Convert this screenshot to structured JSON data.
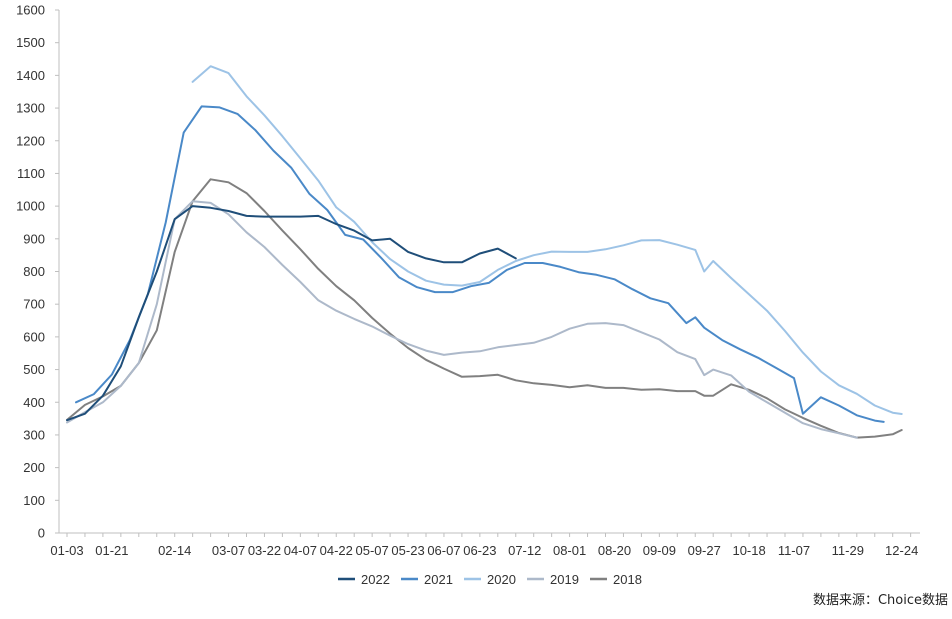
{
  "chart_data": {
    "type": "line",
    "title": "",
    "xlabel": "",
    "ylabel": "",
    "ylim": [
      0,
      1600
    ],
    "yticks": [
      0,
      100,
      200,
      300,
      400,
      500,
      600,
      700,
      800,
      900,
      1000,
      1100,
      1200,
      1300,
      1400,
      1500,
      1600
    ],
    "grid": false,
    "legend": "bottom-center",
    "x_tick_labels": [
      "01-03",
      "01-21",
      "02-14",
      "03-07",
      "03-22",
      "04-07",
      "04-22",
      "05-07",
      "05-23",
      "06-07",
      "06-23",
      "07-12",
      "08-01",
      "08-20",
      "09-09",
      "09-27",
      "10-18",
      "11-07",
      "11-29",
      "12-24"
    ],
    "x_tick_weeks": [
      0,
      2.5,
      6,
      9,
      11,
      13,
      15,
      17,
      19,
      21,
      23,
      25.5,
      28,
      30.5,
      33,
      35.5,
      38,
      40.5,
      43.5,
      46.5
    ],
    "series": [
      {
        "name": "2022",
        "color": "#1f4e79",
        "points": [
          [
            0,
            345
          ],
          [
            1,
            365
          ],
          [
            2,
            420
          ],
          [
            3,
            510
          ],
          [
            4,
            660
          ],
          [
            5,
            800
          ],
          [
            6,
            960
          ],
          [
            7,
            1000
          ],
          [
            8,
            995
          ],
          [
            9,
            985
          ],
          [
            10,
            970
          ],
          [
            11,
            968
          ],
          [
            12,
            968
          ],
          [
            13,
            968
          ],
          [
            14,
            970
          ],
          [
            15,
            945
          ],
          [
            16,
            925
          ],
          [
            17,
            895
          ],
          [
            18,
            900
          ],
          [
            19,
            860
          ],
          [
            20,
            840
          ],
          [
            21,
            828
          ],
          [
            22,
            828
          ],
          [
            23,
            855
          ],
          [
            24,
            870
          ],
          [
            25,
            840
          ]
        ]
      },
      {
        "name": "2021",
        "color": "#4a89c8",
        "points": [
          [
            0.5,
            400
          ],
          [
            1.5,
            425
          ],
          [
            2.5,
            485
          ],
          [
            3.5,
            590
          ],
          [
            4.5,
            730
          ],
          [
            5.5,
            950
          ],
          [
            6.5,
            1225
          ],
          [
            7.5,
            1305
          ],
          [
            8.5,
            1302
          ],
          [
            9.5,
            1282
          ],
          [
            10.5,
            1232
          ],
          [
            11.5,
            1170
          ],
          [
            12.5,
            1117
          ],
          [
            13.5,
            1038
          ],
          [
            14.5,
            988
          ],
          [
            15.5,
            912
          ],
          [
            16.5,
            898
          ],
          [
            17.5,
            842
          ],
          [
            18.5,
            782
          ],
          [
            19.5,
            752
          ],
          [
            20.5,
            737
          ],
          [
            21.5,
            737
          ],
          [
            22.5,
            755
          ],
          [
            23.5,
            765
          ],
          [
            24.5,
            805
          ],
          [
            25.5,
            826
          ],
          [
            26.5,
            826
          ],
          [
            27.5,
            814
          ],
          [
            28.5,
            798
          ],
          [
            29.5,
            790
          ],
          [
            30.5,
            776
          ],
          [
            31.5,
            746
          ],
          [
            32.5,
            718
          ],
          [
            33.5,
            703
          ],
          [
            34.5,
            642
          ],
          [
            35,
            660
          ],
          [
            35.5,
            628
          ],
          [
            36.5,
            590
          ],
          [
            37.5,
            562
          ],
          [
            38.5,
            536
          ],
          [
            39.5,
            505
          ],
          [
            40.5,
            474
          ],
          [
            41,
            365
          ],
          [
            42,
            415
          ],
          [
            43,
            390
          ],
          [
            44,
            360
          ],
          [
            45,
            344
          ],
          [
            45.5,
            340
          ]
        ]
      },
      {
        "name": "2020",
        "color": "#9dc3e6",
        "points": [
          [
            7,
            1380
          ],
          [
            8,
            1428
          ],
          [
            9,
            1407
          ],
          [
            10,
            1336
          ],
          [
            11,
            1278
          ],
          [
            12,
            1214
          ],
          [
            13,
            1146
          ],
          [
            14,
            1078
          ],
          [
            15,
            996
          ],
          [
            16,
            952
          ],
          [
            17,
            890
          ],
          [
            18,
            838
          ],
          [
            19,
            800
          ],
          [
            20,
            772
          ],
          [
            21,
            760
          ],
          [
            22,
            757
          ],
          [
            23,
            768
          ],
          [
            24,
            805
          ],
          [
            25,
            832
          ],
          [
            26,
            850
          ],
          [
            27,
            861
          ],
          [
            28,
            860
          ],
          [
            29,
            860
          ],
          [
            30,
            868
          ],
          [
            31,
            880
          ],
          [
            32,
            895
          ],
          [
            33,
            896
          ],
          [
            34,
            882
          ],
          [
            35,
            866
          ],
          [
            35.5,
            800
          ],
          [
            36,
            832
          ],
          [
            37,
            780
          ],
          [
            38,
            730
          ],
          [
            39,
            680
          ],
          [
            40,
            618
          ],
          [
            41,
            552
          ],
          [
            42,
            494
          ],
          [
            43,
            452
          ],
          [
            44,
            426
          ],
          [
            45,
            390
          ],
          [
            46,
            368
          ],
          [
            46.5,
            364
          ]
        ]
      },
      {
        "name": "2019",
        "color": "#adb9ca",
        "points": [
          [
            0,
            338
          ],
          [
            1,
            370
          ],
          [
            2,
            400
          ],
          [
            3,
            450
          ],
          [
            4,
            520
          ],
          [
            5,
            700
          ],
          [
            6,
            960
          ],
          [
            7,
            1015
          ],
          [
            8,
            1010
          ],
          [
            9,
            975
          ],
          [
            10,
            920
          ],
          [
            11,
            875
          ],
          [
            12,
            820
          ],
          [
            13,
            768
          ],
          [
            14,
            712
          ],
          [
            15,
            680
          ],
          [
            16,
            655
          ],
          [
            17,
            632
          ],
          [
            18,
            604
          ],
          [
            19,
            578
          ],
          [
            20,
            558
          ],
          [
            21,
            545
          ],
          [
            22,
            552
          ],
          [
            23,
            556
          ],
          [
            24,
            568
          ],
          [
            25,
            575
          ],
          [
            26,
            582
          ],
          [
            27,
            600
          ],
          [
            28,
            625
          ],
          [
            29,
            640
          ],
          [
            30,
            642
          ],
          [
            31,
            636
          ],
          [
            32,
            614
          ],
          [
            33,
            592
          ],
          [
            34,
            553
          ],
          [
            35,
            532
          ],
          [
            35.5,
            483
          ],
          [
            36,
            500
          ],
          [
            37,
            482
          ],
          [
            38,
            432
          ],
          [
            39,
            400
          ],
          [
            40,
            368
          ],
          [
            41,
            336
          ],
          [
            42,
            318
          ],
          [
            43,
            305
          ],
          [
            44,
            292
          ]
        ]
      },
      {
        "name": "2018",
        "color": "#808080",
        "points": [
          [
            0,
            346
          ],
          [
            1,
            392
          ],
          [
            2,
            418
          ],
          [
            3,
            450
          ],
          [
            4,
            520
          ],
          [
            5,
            620
          ],
          [
            6,
            860
          ],
          [
            7,
            1015
          ],
          [
            8,
            1082
          ],
          [
            9,
            1073
          ],
          [
            10,
            1040
          ],
          [
            11,
            985
          ],
          [
            12,
            925
          ],
          [
            13,
            868
          ],
          [
            14,
            808
          ],
          [
            15,
            755
          ],
          [
            16,
            712
          ],
          [
            17,
            658
          ],
          [
            18,
            610
          ],
          [
            19,
            566
          ],
          [
            20,
            530
          ],
          [
            21,
            503
          ],
          [
            22,
            478
          ],
          [
            23,
            480
          ],
          [
            24,
            484
          ],
          [
            25,
            467
          ],
          [
            26,
            458
          ],
          [
            27,
            453
          ],
          [
            28,
            446
          ],
          [
            29,
            452
          ],
          [
            30,
            444
          ],
          [
            31,
            444
          ],
          [
            32,
            438
          ],
          [
            33,
            440
          ],
          [
            34,
            434
          ],
          [
            35,
            434
          ],
          [
            35.5,
            420
          ],
          [
            36,
            420
          ],
          [
            37,
            455
          ],
          [
            38,
            438
          ],
          [
            39,
            412
          ],
          [
            40,
            378
          ],
          [
            41,
            352
          ],
          [
            42,
            328
          ],
          [
            43,
            306
          ],
          [
            44,
            292
          ],
          [
            45,
            295
          ],
          [
            46,
            302
          ],
          [
            46.5,
            315
          ]
        ]
      }
    ]
  },
  "source": "数据来源：Choice数据"
}
